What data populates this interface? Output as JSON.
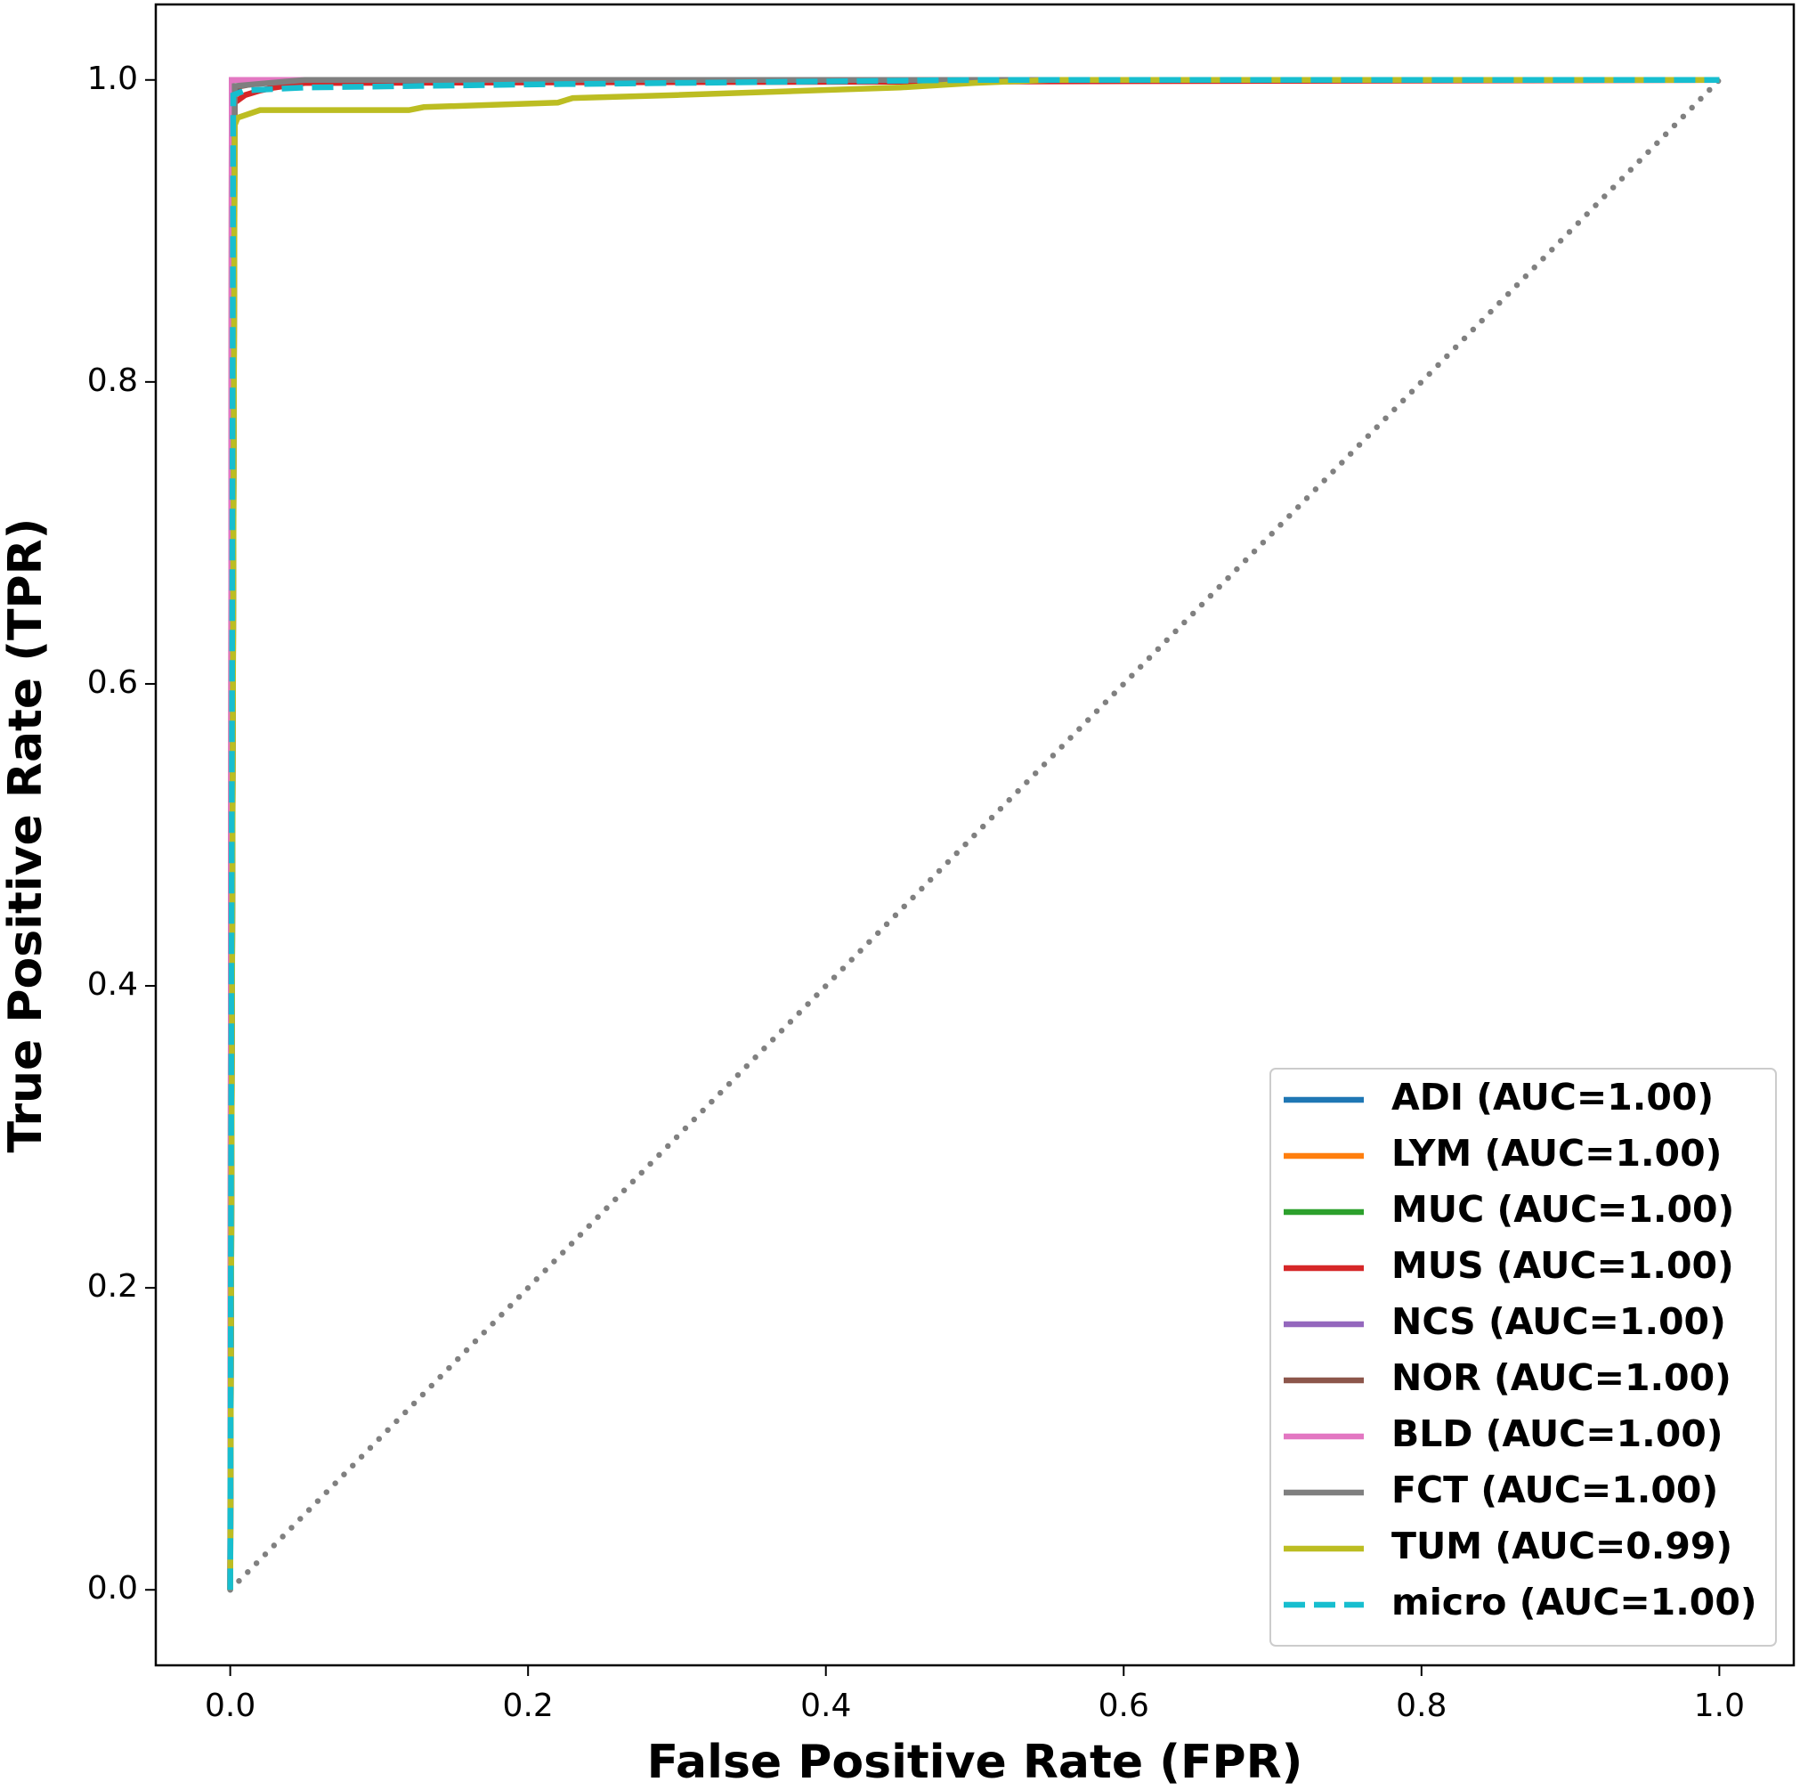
{
  "chart_data": {
    "type": "line",
    "xlabel": "False Positive Rate (FPR)",
    "ylabel": "True Positive Rate (TPR)",
    "xlim": [
      -0.05,
      1.05
    ],
    "ylim": [
      -0.05,
      1.05
    ],
    "xticks": [
      {
        "value": 0,
        "label": "0.0"
      },
      0.2,
      0.4,
      0.6,
      0.8,
      {
        "value": 1,
        "label": "1.0"
      }
    ],
    "yticks": [
      {
        "value": 0,
        "label": "0.0"
      },
      0.2,
      0.4,
      0.6,
      0.8,
      {
        "value": 1,
        "label": "1.0"
      }
    ],
    "legend": "lower right",
    "reference_line": {
      "x": [
        0,
        1
      ],
      "y": [
        0,
        1
      ],
      "color": "#808080",
      "style": "dotted"
    },
    "series": [
      {
        "name": "ADI (AUC=1.00)",
        "color": "#1f77b4",
        "style": "solid",
        "x": [
          0,
          0.002,
          0.01,
          1
        ],
        "y": [
          0,
          0.99,
          1,
          1
        ]
      },
      {
        "name": "LYM (AUC=1.00)",
        "color": "#ff7f0e",
        "style": "solid",
        "x": [
          0,
          0.001,
          1
        ],
        "y": [
          0,
          1,
          1
        ]
      },
      {
        "name": "MUC (AUC=1.00)",
        "color": "#2ca02c",
        "style": "solid",
        "x": [
          0,
          0.003,
          0.02,
          1
        ],
        "y": [
          0,
          0.995,
          1,
          1
        ]
      },
      {
        "name": "MUS (AUC=1.00)",
        "color": "#d62728",
        "style": "solid",
        "x": [
          0,
          0.003,
          0.01,
          0.02,
          0.03,
          0.05,
          1
        ],
        "y": [
          0,
          0.985,
          0.99,
          0.993,
          0.995,
          0.998,
          1
        ]
      },
      {
        "name": "NCS (AUC=1.00)",
        "color": "#9467bd",
        "style": "solid",
        "x": [
          0,
          0.001,
          1
        ],
        "y": [
          0,
          1,
          1
        ]
      },
      {
        "name": "NOR (AUC=1.00)",
        "color": "#8c564b",
        "style": "solid",
        "x": [
          0,
          0.002,
          0.03,
          1
        ],
        "y": [
          0,
          0.995,
          1,
          1
        ]
      },
      {
        "name": "BLD (AUC=1.00)",
        "color": "#e377c2",
        "style": "solid",
        "x": [
          0,
          0.001,
          1
        ],
        "y": [
          0,
          1,
          1
        ]
      },
      {
        "name": "FCT (AUC=1.00)",
        "color": "#7f7f7f",
        "style": "solid",
        "x": [
          0,
          0.003,
          0.05,
          1
        ],
        "y": [
          0,
          0.996,
          1,
          1
        ]
      },
      {
        "name": "TUM (AUC=0.99)",
        "color": "#bcbd22",
        "style": "solid",
        "x": [
          0,
          0.003,
          0.005,
          0.02,
          0.12,
          0.13,
          0.22,
          0.23,
          0.3,
          0.45,
          0.5,
          0.55,
          1
        ],
        "y": [
          0,
          0.97,
          0.975,
          0.98,
          0.98,
          0.982,
          0.985,
          0.988,
          0.99,
          0.995,
          0.998,
          1,
          1
        ]
      },
      {
        "name": "micro (AUC=1.00)",
        "color": "#17becf",
        "style": "dashed",
        "x": [
          0,
          0.002,
          0.01,
          0.05,
          0.2,
          0.4,
          0.5,
          1
        ],
        "y": [
          0,
          0.99,
          0.993,
          0.995,
          0.997,
          0.999,
          1,
          1
        ]
      }
    ]
  }
}
